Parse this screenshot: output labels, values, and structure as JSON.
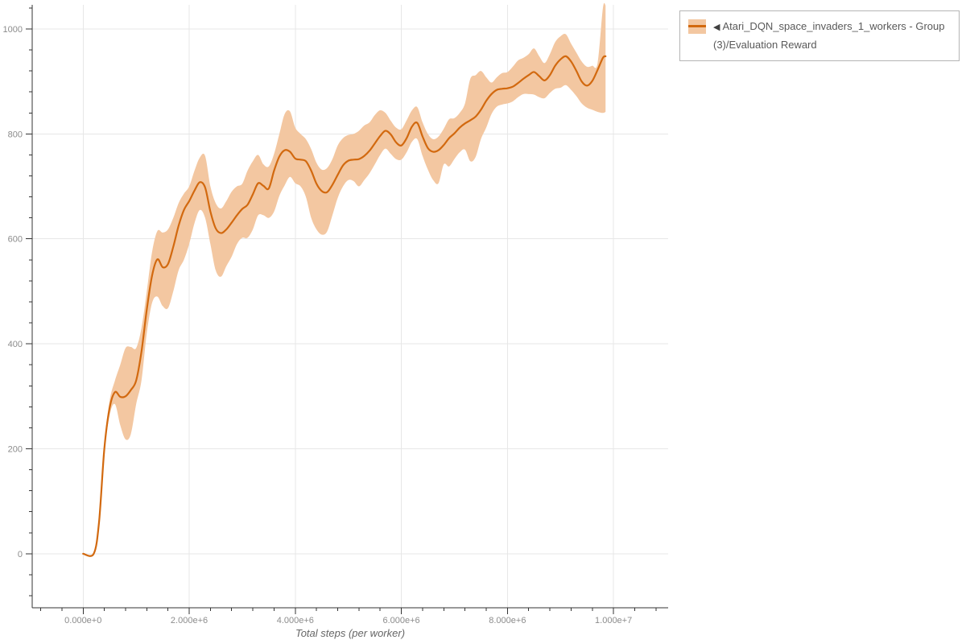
{
  "page": {
    "background": "#ffffff"
  },
  "legend": {
    "position": "top-right",
    "toggle_icon": "◀",
    "entries": [
      {
        "label": "Atari_DQN_space_invaders_1_workers - Group(3)/Evaluation Reward",
        "line_color": "#d2690f",
        "band_color": "#f3c7a1"
      }
    ]
  },
  "chart_data": {
    "type": "line",
    "title": "",
    "xlabel": "Total steps (per worker)",
    "ylabel": "",
    "grid": "major",
    "legend_position": "top-right",
    "xlim": [
      -960000,
      11030000
    ],
    "ylim": [
      -103,
      1046
    ],
    "x_ticks": {
      "values": [
        0,
        2000000.0,
        4000000.0,
        6000000.0,
        8000000.0,
        10000000.0
      ],
      "labels": [
        "0.000e+0",
        "2.000e+6",
        "4.000e+6",
        "6.000e+6",
        "8.000e+6",
        "1.000e+7"
      ]
    },
    "x_minor_step": 400000.0,
    "y_ticks": {
      "values": [
        0,
        200,
        400,
        600,
        800,
        1000
      ],
      "labels": [
        "0",
        "200",
        "400",
        "600",
        "800",
        "1000"
      ]
    },
    "y_minor_step": 40,
    "colors": {
      "grid": "#e7e7e7",
      "axis": "#333333",
      "tick_label": "#8c8c8c",
      "axis_title": "#666666"
    },
    "series": [
      {
        "name": "Atari_DQN_space_invaders_1_workers - Group(3)/Evaluation Reward",
        "line_color": "#d2690f",
        "band_color": "#f3c7a1",
        "x": [
          0,
          200000.0,
          300000.0,
          400000.0,
          500000.0,
          600000.0,
          700000.0,
          800000.0,
          900000.0,
          1000000.0,
          1100000.0,
          1200000.0,
          1300000.0,
          1400000.0,
          1500000.0,
          1600000.0,
          1700000.0,
          1800000.0,
          1900000.0,
          2000000.0,
          2100000.0,
          2200000.0,
          2300000.0,
          2400000.0,
          2500000.0,
          2600000.0,
          2700000.0,
          2800000.0,
          2900000.0,
          3000000.0,
          3100000.0,
          3200000.0,
          3300000.0,
          3400000.0,
          3500000.0,
          3600000.0,
          3700000.0,
          3800000.0,
          3900000.0,
          4000000.0,
          4100000.0,
          4200000.0,
          4300000.0,
          4400000.0,
          4500000.0,
          4600000.0,
          4700000.0,
          4800000.0,
          4900000.0,
          5000000.0,
          5100000.0,
          5200000.0,
          5300000.0,
          5400000.0,
          5500000.0,
          5600000.0,
          5700000.0,
          5800000.0,
          5900000.0,
          6000000.0,
          6100000.0,
          6200000.0,
          6300000.0,
          6400000.0,
          6500000.0,
          6600000.0,
          6700000.0,
          6800000.0,
          6900000.0,
          7000000.0,
          7100000.0,
          7200000.0,
          7300000.0,
          7400000.0,
          7500000.0,
          7600000.0,
          7700000.0,
          7800000.0,
          7900000.0,
          8000000.0,
          8100000.0,
          8200000.0,
          8300000.0,
          8400000.0,
          8500000.0,
          8600000.0,
          8700000.0,
          8800000.0,
          8900000.0,
          9000000.0,
          9100000.0,
          9200000.0,
          9300000.0,
          9400000.0,
          9500000.0,
          9600000.0,
          9700000.0,
          9800000.0,
          9850000.0
        ],
        "mean": [
          0,
          0,
          60,
          200,
          278,
          308,
          299,
          300,
          312,
          330,
          385,
          465,
          530,
          561,
          546,
          552,
          585,
          625,
          655,
          672,
          692,
          708,
          698,
          652,
          620,
          611,
          618,
          631,
          645,
          657,
          665,
          685,
          706,
          701,
          696,
          730,
          757,
          769,
          766,
          753,
          751,
          748,
          730,
          705,
          691,
          689,
          703,
          722,
          740,
          749,
          751,
          752,
          758,
          768,
          782,
          796,
          806,
          799,
          784,
          778,
          792,
          814,
          821,
          795,
          773,
          766,
          769,
          779,
          792,
          801,
          812,
          820,
          826,
          833,
          846,
          863,
          876,
          884,
          886,
          887,
          890,
          897,
          905,
          912,
          918,
          910,
          902,
          912,
          930,
          942,
          948,
          938,
          920,
          900,
          892,
          901,
          922,
          945,
          948
        ],
        "band_upper": [
          0,
          0,
          65,
          210,
          292,
          330,
          360,
          392,
          394,
          392,
          430,
          500,
          575,
          615,
          612,
          618,
          640,
          668,
          686,
          700,
          730,
          755,
          758,
          700,
          668,
          658,
          672,
          690,
          700,
          705,
          730,
          748,
          760,
          742,
          738,
          762,
          800,
          838,
          843,
          812,
          800,
          790,
          771,
          745,
          732,
          735,
          752,
          778,
          792,
          798,
          800,
          806,
          816,
          822,
          836,
          845,
          840,
          825,
          812,
          809,
          826,
          845,
          851,
          822,
          800,
          790,
          795,
          810,
          828,
          830,
          840,
          858,
          905,
          912,
          920,
          908,
          898,
          908,
          916,
          918,
          928,
          940,
          945,
          952,
          963,
          948,
          935,
          952,
          975,
          986,
          990,
          972,
          955,
          938,
          928,
          930,
          935,
          1040,
          1045
        ],
        "band_lower": [
          0,
          0,
          55,
          190,
          264,
          285,
          245,
          218,
          228,
          285,
          330,
          420,
          478,
          490,
          472,
          468,
          500,
          540,
          560,
          590,
          630,
          655,
          640,
          590,
          540,
          528,
          548,
          566,
          590,
          602,
          602,
          618,
          645,
          645,
          640,
          652,
          682,
          702,
          718,
          706,
          700,
          680,
          640,
          618,
          608,
          614,
          645,
          678,
          700,
          712,
          710,
          700,
          712,
          725,
          742,
          760,
          772,
          762,
          752,
          751,
          765,
          785,
          790,
          758,
          732,
          712,
          706,
          742,
          738,
          752,
          765,
          770,
          748,
          756,
          790,
          812,
          838,
          852,
          856,
          858,
          862,
          870,
          876,
          876,
          875,
          870,
          868,
          878,
          886,
          888,
          893,
          884,
          872,
          858,
          850,
          846,
          842,
          840,
          842
        ]
      }
    ]
  }
}
